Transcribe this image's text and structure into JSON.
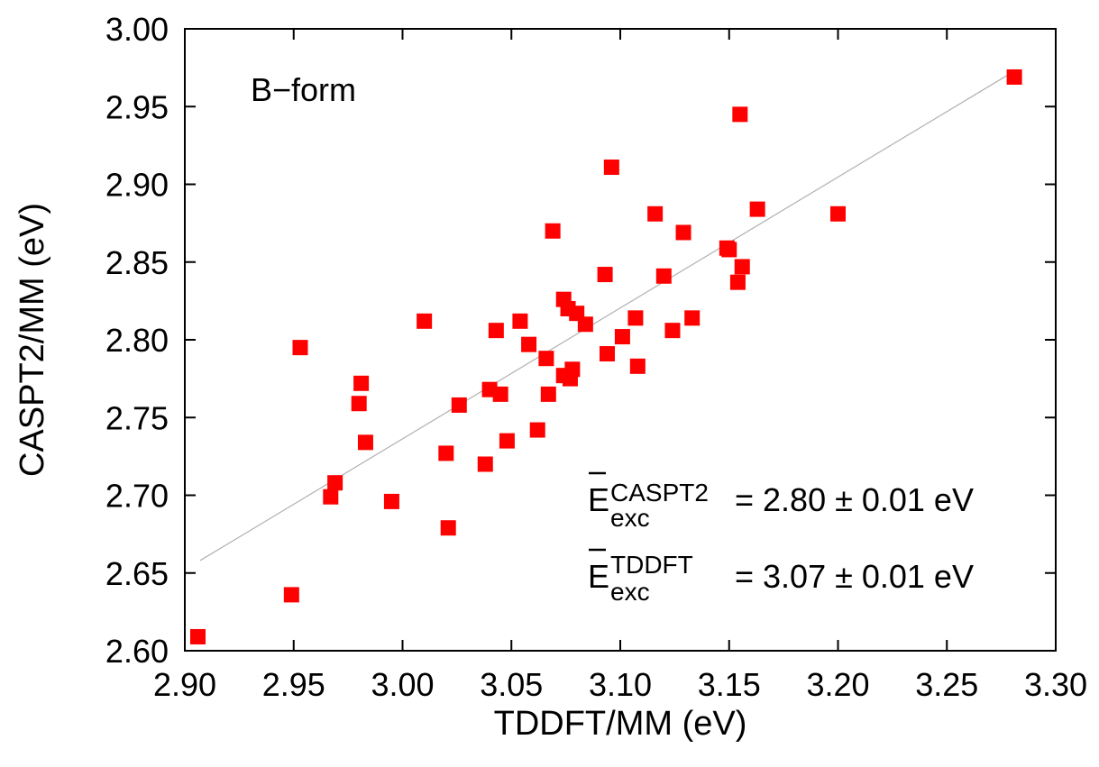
{
  "chart_data": {
    "type": "scatter",
    "title": "",
    "xlabel": "TDDFT/MM (eV)",
    "ylabel": "CASPT2/MM (eV)",
    "xlim": [
      2.9,
      3.3
    ],
    "ylim": [
      2.6,
      3.0
    ],
    "grid": false,
    "x_ticks": [
      "2.90",
      "2.95",
      "3.00",
      "3.05",
      "3.10",
      "3.15",
      "3.20",
      "3.25",
      "3.30"
    ],
    "y_ticks": [
      "2.60",
      "2.65",
      "2.70",
      "2.75",
      "2.80",
      "2.85",
      "2.90",
      "2.95",
      "3.00"
    ],
    "marker_color": "#ff0000",
    "fit_line_color": "#b0b0b0",
    "fit_line": {
      "x": [
        2.907,
        3.28
      ],
      "y": [
        2.658,
        2.972
      ]
    },
    "series": [
      {
        "points": [
          [
            2.906,
            2.609
          ],
          [
            2.949,
            2.636
          ],
          [
            2.953,
            2.795
          ],
          [
            2.967,
            2.699
          ],
          [
            2.969,
            2.708
          ],
          [
            2.98,
            2.759
          ],
          [
            2.981,
            2.772
          ],
          [
            2.983,
            2.734
          ],
          [
            2.995,
            2.696
          ],
          [
            3.01,
            2.812
          ],
          [
            3.02,
            2.727
          ],
          [
            3.021,
            2.679
          ],
          [
            3.026,
            2.758
          ],
          [
            3.038,
            2.72
          ],
          [
            3.04,
            2.768
          ],
          [
            3.043,
            2.806
          ],
          [
            3.045,
            2.765
          ],
          [
            3.048,
            2.735
          ],
          [
            3.054,
            2.812
          ],
          [
            3.058,
            2.797
          ],
          [
            3.062,
            2.742
          ],
          [
            3.066,
            2.788
          ],
          [
            3.067,
            2.765
          ],
          [
            3.069,
            2.87
          ],
          [
            3.074,
            2.826
          ],
          [
            3.074,
            2.777
          ],
          [
            3.076,
            2.82
          ],
          [
            3.077,
            2.775
          ],
          [
            3.078,
            2.781
          ],
          [
            3.08,
            2.817
          ],
          [
            3.084,
            2.81
          ],
          [
            3.093,
            2.842
          ],
          [
            3.094,
            2.791
          ],
          [
            3.096,
            2.911
          ],
          [
            3.101,
            2.802
          ],
          [
            3.107,
            2.814
          ],
          [
            3.108,
            2.783
          ],
          [
            3.116,
            2.881
          ],
          [
            3.12,
            2.841
          ],
          [
            3.124,
            2.806
          ],
          [
            3.129,
            2.869
          ],
          [
            3.133,
            2.814
          ],
          [
            3.149,
            2.859
          ],
          [
            3.15,
            2.858
          ],
          [
            3.154,
            2.837
          ],
          [
            3.155,
            2.945
          ],
          [
            3.156,
            2.847
          ],
          [
            3.163,
            2.884
          ],
          [
            3.2,
            2.881
          ],
          [
            3.281,
            2.969
          ]
        ]
      }
    ],
    "annotations": {
      "form_label": "B−form",
      "caspt2": {
        "symbol": "E",
        "sup": "CASPT2",
        "sub": "exc",
        "text": "= 2.80 ± 0.01 eV"
      },
      "tddft": {
        "symbol": "E",
        "sup": "TDDFT",
        "sub": "exc",
        "text": "= 3.07 ± 0.01 eV"
      }
    }
  }
}
